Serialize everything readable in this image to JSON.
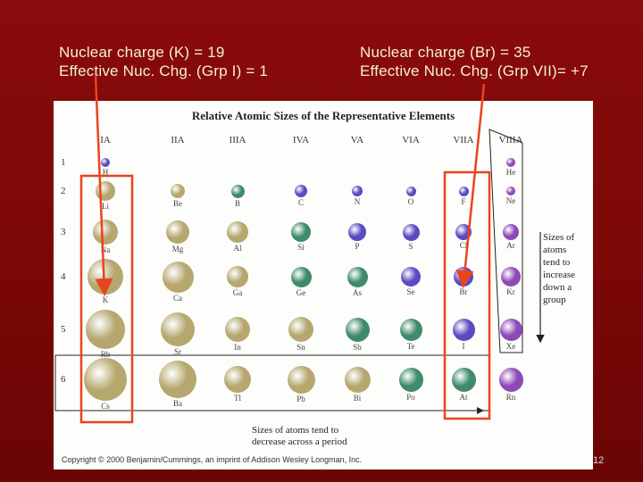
{
  "captions": {
    "left": [
      "Nuclear charge (K) = 19",
      "Effective Nuc. Chg. (Grp I) = 1"
    ],
    "right": [
      "Nuclear charge (Br) = 35",
      "Effective Nuc. Chg. (Grp VII)= +7"
    ]
  },
  "figure": {
    "title": "Relative Atomic Sizes of the Representative Elements",
    "groups": [
      "IA",
      "IIA",
      "IIIA",
      "IVA",
      "VA",
      "VIA",
      "VIIA",
      "VIIIA"
    ],
    "periods": [
      "1",
      "2",
      "3",
      "4",
      "5",
      "6"
    ],
    "elements": [
      {
        "s": "H",
        "g": 0,
        "p": 0
      },
      {
        "s": "He",
        "g": 7,
        "p": 0
      },
      {
        "s": "Li",
        "g": 0,
        "p": 1
      },
      {
        "s": "Be",
        "g": 1,
        "p": 1
      },
      {
        "s": "B",
        "g": 2,
        "p": 1
      },
      {
        "s": "C",
        "g": 3,
        "p": 1
      },
      {
        "s": "N",
        "g": 4,
        "p": 1
      },
      {
        "s": "O",
        "g": 5,
        "p": 1
      },
      {
        "s": "F",
        "g": 6,
        "p": 1
      },
      {
        "s": "Ne",
        "g": 7,
        "p": 1
      },
      {
        "s": "Na",
        "g": 0,
        "p": 2
      },
      {
        "s": "Mg",
        "g": 1,
        "p": 2
      },
      {
        "s": "Al",
        "g": 2,
        "p": 2
      },
      {
        "s": "Si",
        "g": 3,
        "p": 2
      },
      {
        "s": "P",
        "g": 4,
        "p": 2
      },
      {
        "s": "S",
        "g": 5,
        "p": 2
      },
      {
        "s": "Cl",
        "g": 6,
        "p": 2
      },
      {
        "s": "Ar",
        "g": 7,
        "p": 2
      },
      {
        "s": "K",
        "g": 0,
        "p": 3
      },
      {
        "s": "Ca",
        "g": 1,
        "p": 3
      },
      {
        "s": "Ga",
        "g": 2,
        "p": 3
      },
      {
        "s": "Ge",
        "g": 3,
        "p": 3
      },
      {
        "s": "As",
        "g": 4,
        "p": 3
      },
      {
        "s": "Se",
        "g": 5,
        "p": 3
      },
      {
        "s": "Br",
        "g": 6,
        "p": 3
      },
      {
        "s": "Kr",
        "g": 7,
        "p": 3
      },
      {
        "s": "Rb",
        "g": 0,
        "p": 4
      },
      {
        "s": "Sr",
        "g": 1,
        "p": 4
      },
      {
        "s": "In",
        "g": 2,
        "p": 4
      },
      {
        "s": "Sn",
        "g": 3,
        "p": 4
      },
      {
        "s": "Sb",
        "g": 4,
        "p": 4
      },
      {
        "s": "Te",
        "g": 5,
        "p": 4
      },
      {
        "s": "I",
        "g": 6,
        "p": 4
      },
      {
        "s": "Xe",
        "g": 7,
        "p": 4
      },
      {
        "s": "Cs",
        "g": 0,
        "p": 5
      },
      {
        "s": "Ba",
        "g": 1,
        "p": 5
      },
      {
        "s": "Tl",
        "g": 2,
        "p": 5
      },
      {
        "s": "Pb",
        "g": 3,
        "p": 5
      },
      {
        "s": "Bi",
        "g": 4,
        "p": 5
      },
      {
        "s": "Po",
        "g": 5,
        "p": 5
      },
      {
        "s": "At",
        "g": 6,
        "p": 5
      },
      {
        "s": "Rn",
        "g": 7,
        "p": 5
      }
    ],
    "note_group": [
      "Sizes of",
      "atoms",
      "tend to",
      "increase",
      "down a",
      "group"
    ],
    "note_period": [
      "Sizes of atoms tend to",
      "decrease across a period"
    ],
    "copyright": "Copyright © 2000 Benjamin/Cummings, an imprint of Addison Wesley Longman, Inc."
  },
  "colors": {
    "metal": "#b5a76e",
    "metalloid": "#3f8a6c",
    "nonmetal": "#5a4bc0",
    "noble": "#8e49b8",
    "highlight": "#e8441e"
  },
  "page_number": "12"
}
